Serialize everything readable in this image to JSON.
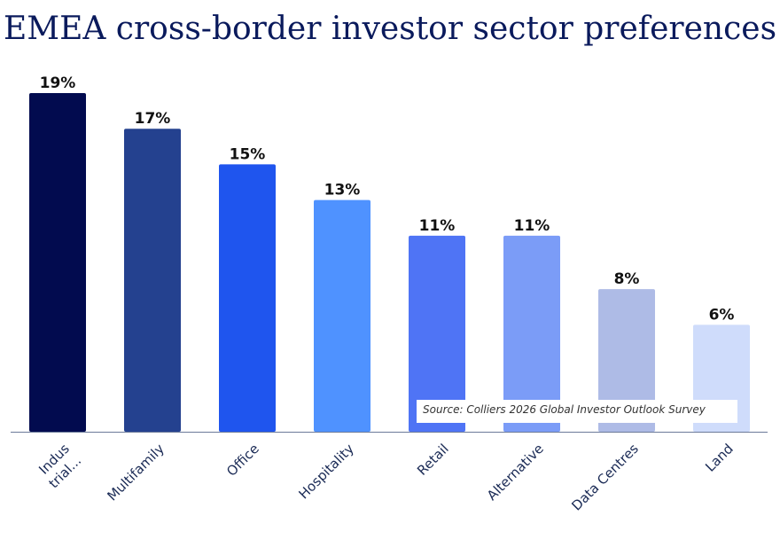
{
  "chart_data": {
    "type": "bar",
    "title": "EMEA cross-border investor sector preferences",
    "categories": [
      "Indus trial...",
      "Multifamily",
      "Office",
      "Hospitality",
      "Retail",
      "Alternative",
      "Data Centres",
      "Land"
    ],
    "category_lines": [
      [
        "Indus",
        "trial..."
      ],
      [
        "Multifamily"
      ],
      [
        "Office"
      ],
      [
        "Hospitality"
      ],
      [
        "Retail"
      ],
      [
        "Alternative"
      ],
      [
        "Data Centres"
      ],
      [
        "Land"
      ]
    ],
    "values": [
      19,
      17,
      15,
      13,
      11,
      11,
      8,
      6
    ],
    "value_labels": [
      "19%",
      "17%",
      "15%",
      "13%",
      "11%",
      "11%",
      "8%",
      "6%"
    ],
    "colors": [
      "#020b4f",
      "#24418f",
      "#1f55ee",
      "#4f92ff",
      "#4f74f5",
      "#7b9cf7",
      "#aebbe6",
      "#cfdcfb"
    ],
    "ylim": [
      0,
      19
    ],
    "grid": false,
    "legend": "none",
    "xlabel": "",
    "ylabel": "",
    "source": "Source: Colliers 2026 Global Investor Outlook Survey"
  }
}
